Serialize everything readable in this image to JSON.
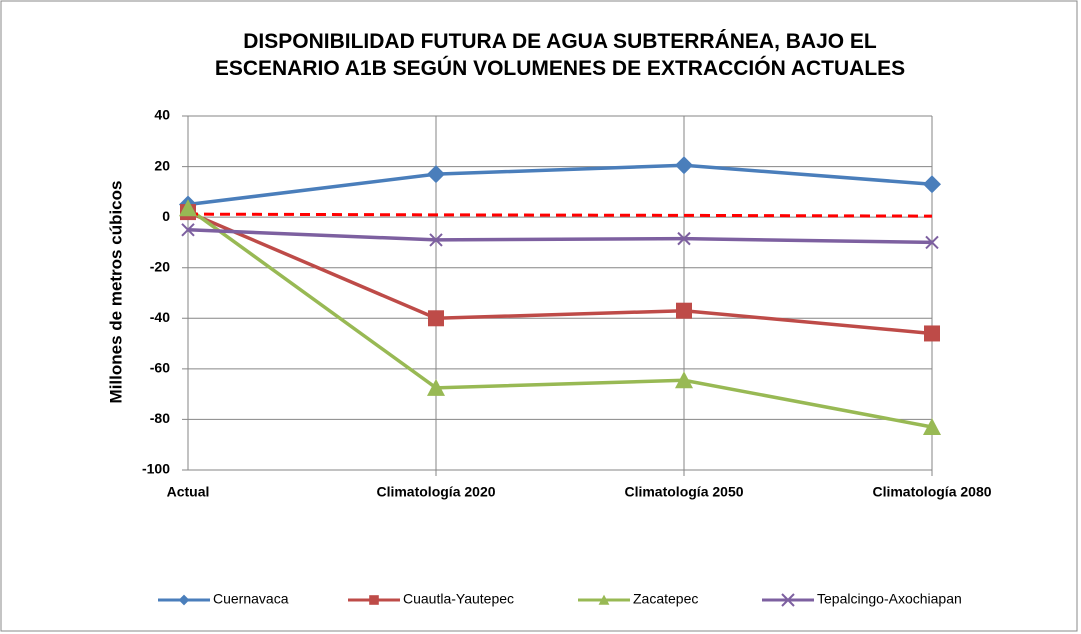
{
  "chart_data": {
    "type": "line",
    "title": "DISPONIBILIDAD  FUTURA DE AGUA SUBTERRÁNEA, BAJO EL ESCENARIO A1B SEGÚN VOLUMENES DE EXTRACCIÓN ACTUALES",
    "y_label": "Millones de metros cúbicos",
    "categories": [
      "Actual",
      "Climatología 2020",
      "Climatología 2050",
      "Climatología 2080"
    ],
    "series": [
      {
        "name": "Cuernavaca",
        "color": "#4a7ebb",
        "marker": "diamond",
        "values": [
          5,
          17,
          20.5,
          13
        ]
      },
      {
        "name": "Cuautla-Yautepec",
        "color": "#be4b48",
        "marker": "square",
        "values": [
          2,
          -40,
          -37,
          -46
        ]
      },
      {
        "name": "Zacatepec",
        "color": "#98b954",
        "marker": "triangle",
        "values": [
          3.5,
          -67.5,
          -64.5,
          -83
        ]
      },
      {
        "name": "Tepalcingo-Axochiapan",
        "color": "#7d60a0",
        "marker": "x",
        "values": [
          -5,
          -9,
          -8.5,
          -10
        ]
      }
    ],
    "reference_line": {
      "color": "#ff0000",
      "dashed": true,
      "values": [
        1.2,
        0.9,
        0.7,
        0.4
      ]
    },
    "ylim": [
      -100,
      40
    ],
    "yticks": [
      -100,
      -80,
      -60,
      -40,
      -20,
      0,
      20,
      40
    ],
    "grid": true,
    "legend": "bottom"
  }
}
